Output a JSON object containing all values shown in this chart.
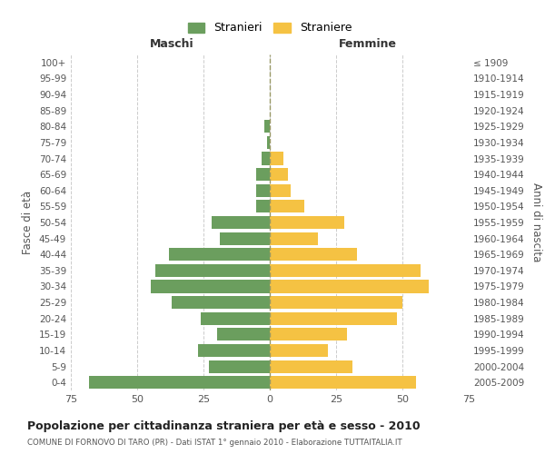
{
  "age_groups": [
    "0-4",
    "5-9",
    "10-14",
    "15-19",
    "20-24",
    "25-29",
    "30-34",
    "35-39",
    "40-44",
    "45-49",
    "50-54",
    "55-59",
    "60-64",
    "65-69",
    "70-74",
    "75-79",
    "80-84",
    "85-89",
    "90-94",
    "95-99",
    "100+"
  ],
  "birth_years": [
    "2005-2009",
    "2000-2004",
    "1995-1999",
    "1990-1994",
    "1985-1989",
    "1980-1984",
    "1975-1979",
    "1970-1974",
    "1965-1969",
    "1960-1964",
    "1955-1959",
    "1950-1954",
    "1945-1949",
    "1940-1944",
    "1935-1939",
    "1930-1934",
    "1925-1929",
    "1920-1924",
    "1915-1919",
    "1910-1914",
    "≤ 1909"
  ],
  "maschi": [
    68,
    23,
    27,
    20,
    26,
    37,
    45,
    43,
    38,
    19,
    22,
    5,
    5,
    5,
    3,
    1,
    2,
    0,
    0,
    0,
    0
  ],
  "femmine": [
    55,
    31,
    22,
    29,
    48,
    50,
    60,
    57,
    33,
    18,
    28,
    13,
    8,
    7,
    5,
    0,
    0,
    0,
    0,
    0,
    0
  ],
  "color_maschi": "#6b9e5e",
  "color_femmine": "#f5c243",
  "title": "Popolazione per cittadinanza straniera per età e sesso - 2010",
  "subtitle": "COMUNE DI FORNOVO DI TARO (PR) - Dati ISTAT 1° gennaio 2010 - Elaborazione TUTTAITALIA.IT",
  "xlabel_left": "Maschi",
  "xlabel_right": "Femmine",
  "ylabel_left": "Fasce di età",
  "ylabel_right": "Anni di nascita",
  "legend_maschi": "Stranieri",
  "legend_femmine": "Straniere",
  "xlim": 75,
  "bg_color": "#ffffff",
  "grid_color": "#cccccc",
  "bar_height": 0.8
}
